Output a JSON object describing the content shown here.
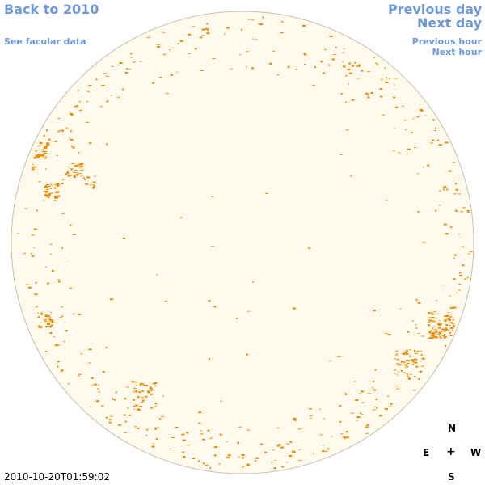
{
  "nav": {
    "back_label": "Back to 2010",
    "facular_label": "See facular data",
    "previous_day_label": "Previous day",
    "next_day_label": "Next day",
    "previous_hour_label": "Previous hour",
    "next_hour_label": "Next hour"
  },
  "timestamp": "2010-10-20T01:59:02",
  "compass": {
    "north": "N",
    "east": "E",
    "west": "W",
    "south": "S",
    "center": "+"
  },
  "colors": {
    "disk_fill": "#fffaee",
    "disk_edge": "#c9bfa8",
    "spots": "#ee8a00",
    "link": "#6c98df"
  }
}
